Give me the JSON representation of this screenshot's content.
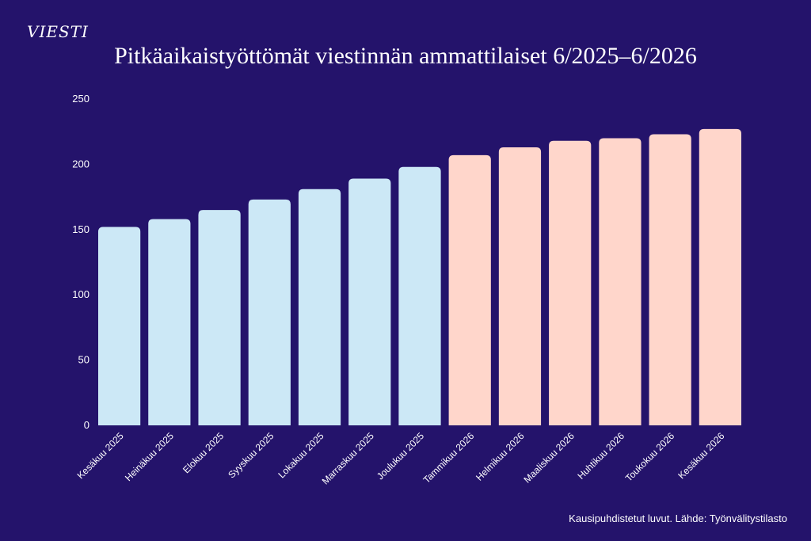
{
  "brand": {
    "logo_text": "VIESTI"
  },
  "chart_data": {
    "type": "bar",
    "title": "Pitkäaikaistyöttömät viestinnän ammattilaiset 6/2025–6/2026",
    "xlabel": "",
    "ylabel": "",
    "ylim": [
      0,
      250
    ],
    "yticks": [
      0,
      50,
      100,
      150,
      200,
      250
    ],
    "grid": false,
    "categories": [
      "Kesäkuu 2025",
      "Heinäkuu 2025",
      "Elokuu 2025",
      "Syyskuu 2025",
      "Lokakuu 2025",
      "Marraskuu 2025",
      "Joulukuu 2025",
      "Tammikuu 2026",
      "Helmikuu 2026",
      "Maaliskuu 2026",
      "Huhtikuu 2026",
      "Toukokuu 2026",
      "Kesäkuu 2026"
    ],
    "values": [
      152,
      158,
      165,
      173,
      181,
      189,
      198,
      207,
      213,
      218,
      220,
      223,
      227
    ],
    "colors": {
      "year_2025": "#cce8f6",
      "year_2026": "#ffd6cb",
      "background": "#24136b",
      "text": "#ffffff"
    },
    "source": "Kausipuhdistetut luvut. Lähde: Työnvälitystilasto"
  }
}
